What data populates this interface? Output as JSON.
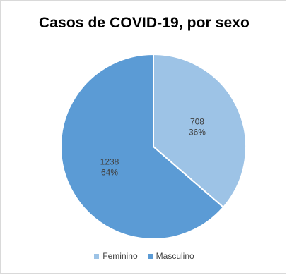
{
  "chart_data": {
    "type": "pie",
    "title": "Casos de COVID-19, por sexo",
    "categories": [
      "Feminino",
      "Masculino"
    ],
    "values": [
      708,
      1238
    ],
    "percent_labels": [
      "36%",
      "64%"
    ],
    "colors": [
      "#9dc3e6",
      "#5b9bd5"
    ],
    "legend_position": "bottom"
  }
}
